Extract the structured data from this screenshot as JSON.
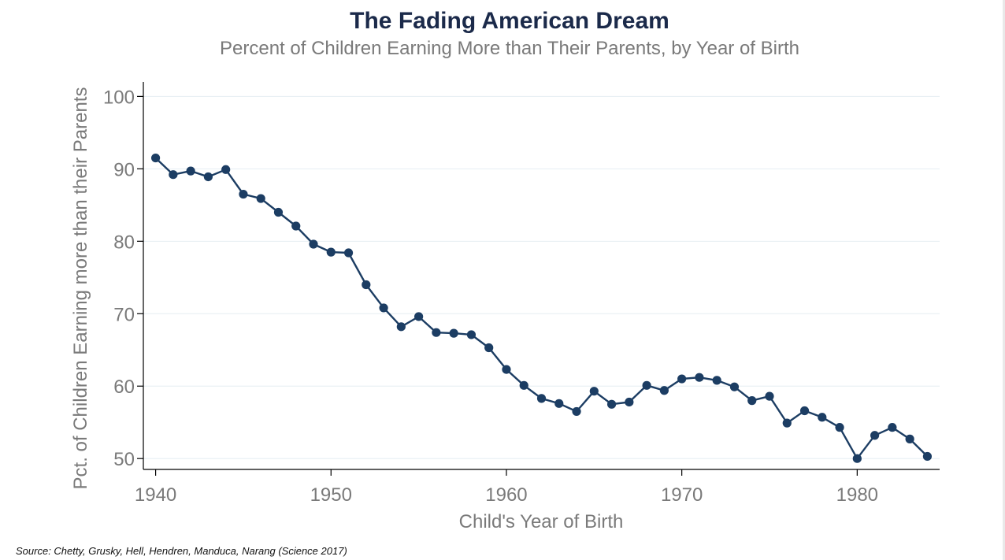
{
  "chart_data": {
    "type": "line",
    "title": "The Fading American Dream",
    "subtitle": "Percent of Children Earning More than Their Parents, by Year of Birth",
    "xlabel": "Child's Year of Birth",
    "ylabel": "Pct. of Children Earning more than their Parents",
    "xlim": [
      1939.3,
      1984.7
    ],
    "ylim": [
      48.5,
      102
    ],
    "xticks": [
      1940,
      1950,
      1960,
      1970,
      1980
    ],
    "yticks": [
      50,
      60,
      70,
      80,
      90,
      100
    ],
    "grid": "horizontal",
    "marker": "circle",
    "color": "#1c3d63",
    "x": [
      1940,
      1941,
      1942,
      1943,
      1944,
      1945,
      1946,
      1947,
      1948,
      1949,
      1950,
      1951,
      1952,
      1953,
      1954,
      1955,
      1956,
      1957,
      1958,
      1959,
      1960,
      1961,
      1962,
      1963,
      1964,
      1965,
      1966,
      1967,
      1968,
      1969,
      1970,
      1971,
      1972,
      1973,
      1974,
      1975,
      1976,
      1977,
      1978,
      1979,
      1980,
      1981,
      1982,
      1983,
      1984
    ],
    "y": [
      91.5,
      89.2,
      89.7,
      88.9,
      89.9,
      86.5,
      85.9,
      84.0,
      82.1,
      79.6,
      78.5,
      78.4,
      74.0,
      70.8,
      68.2,
      69.6,
      67.4,
      67.3,
      67.1,
      65.3,
      62.3,
      60.1,
      58.3,
      57.6,
      56.5,
      59.3,
      57.5,
      57.8,
      60.1,
      59.4,
      61.0,
      61.2,
      60.8,
      59.9,
      58.0,
      58.6,
      54.9,
      56.6,
      55.7,
      54.3,
      50.0,
      53.2,
      54.3,
      52.7,
      50.3
    ]
  },
  "source": "Source: Chetty, Grusky, Hell, Hendren, Manduca, Narang (Science 2017)"
}
